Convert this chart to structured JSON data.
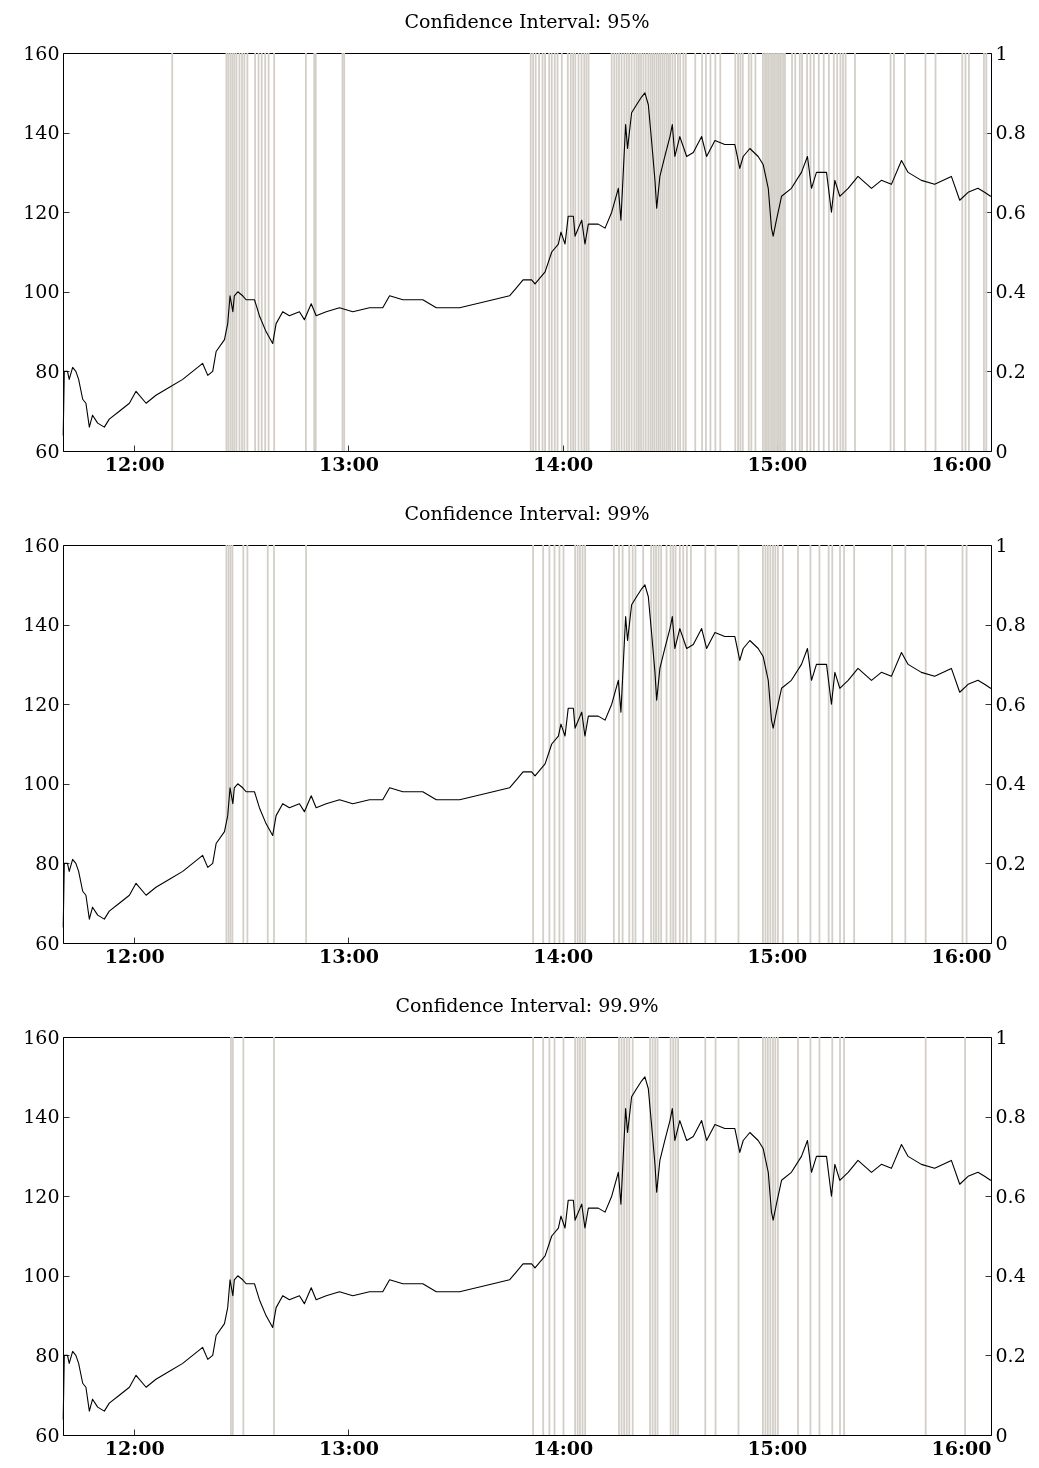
{
  "chart_data": [
    {
      "type": "line",
      "title": "Confidence Interval: 95%",
      "xlim": [
        11.667,
        16
      ],
      "xticks": [
        {
          "value": 12,
          "label": "12:00"
        },
        {
          "value": 13,
          "label": "13:00"
        },
        {
          "value": 14,
          "label": "14:00"
        },
        {
          "value": 15,
          "label": "15:00"
        },
        {
          "value": 16,
          "label": "16:00"
        }
      ],
      "ylim": [
        60,
        160
      ],
      "yticks": [
        60,
        80,
        100,
        120,
        140,
        160
      ],
      "y2lim": [
        0,
        1
      ],
      "y2ticks": [
        0,
        0.2,
        0.4,
        0.6,
        0.8,
        1
      ],
      "series": [
        {
          "type": "bar",
          "axis": "y2",
          "color": "#d3cfc8",
          "x": [
            12.177,
            12.43,
            12.439,
            12.449,
            12.458,
            12.467,
            12.477,
            12.491,
            12.503,
            12.514,
            12.528,
            12.564,
            12.58,
            12.595,
            12.611,
            12.627,
            12.653,
            12.801,
            12.84,
            12.847,
            12.972,
            12.98,
            13.851,
            13.862,
            13.874,
            13.89,
            13.906,
            13.918,
            13.937,
            13.949,
            13.963,
            13.976,
            13.996,
            14.024,
            14.038,
            14.049,
            14.059,
            14.074,
            14.088,
            14.101,
            14.111,
            14.121,
            14.229,
            14.241,
            14.252,
            14.263,
            14.275,
            14.288,
            14.299,
            14.31,
            14.322,
            14.335,
            14.346,
            14.356,
            14.366,
            14.377,
            14.388,
            14.4,
            14.41,
            14.419,
            14.428,
            14.438,
            14.447,
            14.456,
            14.466,
            14.475,
            14.485,
            14.494,
            14.502,
            14.513,
            14.525,
            14.538,
            14.549,
            14.564,
            14.575,
            14.619,
            14.651,
            14.669,
            14.69,
            14.713,
            14.736,
            14.806,
            14.819,
            14.83,
            14.841,
            14.869,
            14.881,
            14.9,
            14.935,
            14.945,
            14.954,
            14.963,
            14.973,
            14.982,
            14.991,
            15.001,
            15.01,
            15.019,
            15.029,
            15.038,
            15.071,
            15.086,
            15.107,
            15.118,
            15.141,
            15.157,
            15.173,
            15.196,
            15.219,
            15.243,
            15.266,
            15.282,
            15.297,
            15.309,
            15.321,
            15.365,
            15.531,
            15.547,
            15.598,
            15.694,
            15.741,
            15.866,
            15.881,
            15.897,
            15.967,
            15.978
          ],
          "values": [
            1,
            1,
            1,
            1,
            1,
            1,
            1,
            1,
            1,
            1,
            1,
            1,
            1,
            1,
            1,
            1,
            1,
            1,
            1,
            1,
            1,
            1,
            1,
            1,
            1,
            1,
            1,
            1,
            1,
            1,
            1,
            1,
            1,
            1,
            1,
            1,
            1,
            1,
            1,
            1,
            1,
            1,
            1,
            1,
            1,
            1,
            1,
            1,
            1,
            1,
            1,
            1,
            1,
            1,
            1,
            1,
            1,
            1,
            1,
            1,
            1,
            1,
            1,
            1,
            1,
            1,
            1,
            1,
            1,
            1,
            1,
            1,
            1,
            1,
            1,
            1,
            1,
            1,
            1,
            1,
            1,
            1,
            1,
            1,
            1,
            1,
            1,
            1,
            1,
            1,
            1,
            1,
            1,
            1,
            1,
            1,
            1,
            1,
            1,
            1,
            1,
            1,
            1,
            1,
            1,
            1,
            1,
            1,
            1,
            1,
            1,
            1,
            1,
            1,
            1,
            1,
            1,
            1,
            1,
            1,
            1,
            1,
            1,
            1,
            1,
            1
          ]
        },
        {
          "color": "#000000",
          "x": [
            11.668,
            11.673,
            11.688,
            11.696,
            11.712,
            11.727,
            11.74,
            11.759,
            11.774,
            11.79,
            11.805,
            11.829,
            11.86,
            11.883,
            11.93,
            11.977,
            12.008,
            12.055,
            12.101,
            12.164,
            12.226,
            12.319,
            12.343,
            12.366,
            12.382,
            12.421,
            12.436,
            12.447,
            12.46,
            12.467,
            12.483,
            12.506,
            12.522,
            12.537,
            12.561,
            12.584,
            12.615,
            12.646,
            12.662,
            12.693,
            12.724,
            12.771,
            12.794,
            12.826,
            12.849,
            12.896,
            12.958,
            13.02,
            13.098,
            13.16,
            13.192,
            13.254,
            13.347,
            13.41,
            13.519,
            13.597,
            13.675,
            13.752,
            13.784,
            13.815,
            13.855,
            13.871,
            13.918,
            13.949,
            13.98,
            13.992,
            14.011,
            14.026,
            14.05,
            14.058,
            14.089,
            14.104,
            14.12,
            14.166,
            14.198,
            14.229,
            14.26,
            14.272,
            14.283,
            14.294,
            14.303,
            14.322,
            14.345,
            14.369,
            14.384,
            14.4,
            14.415,
            14.431,
            14.439,
            14.454,
            14.477,
            14.501,
            14.512,
            14.524,
            14.547,
            14.579,
            14.61,
            14.649,
            14.672,
            14.711,
            14.757,
            14.804,
            14.827,
            14.843,
            14.874,
            14.913,
            14.936,
            14.96,
            14.975,
            14.983,
            14.998,
            15.022,
            15.068,
            15.115,
            15.143,
            15.162,
            15.185,
            15.232,
            15.255,
            15.271,
            15.294,
            15.333,
            15.379,
            15.442,
            15.488,
            15.535,
            15.582,
            15.613,
            15.675,
            15.737,
            15.815,
            15.854,
            15.893,
            15.939,
            15.97,
            15.998
          ],
          "values": [
            64,
            80,
            80,
            78,
            81,
            80,
            78,
            73,
            72,
            66,
            69,
            67,
            66,
            68,
            70,
            72,
            75,
            72,
            74,
            76,
            78,
            82,
            79,
            80,
            85,
            88,
            92,
            99,
            95,
            99,
            100,
            99,
            98,
            98,
            98,
            94,
            90,
            87,
            92,
            95,
            94,
            95,
            93,
            97,
            94,
            95,
            96,
            95,
            96,
            96,
            99,
            98,
            98,
            96,
            96,
            97,
            98,
            99,
            101,
            103,
            103,
            102,
            105,
            110,
            112,
            115,
            112,
            119,
            119,
            114,
            118,
            112,
            117,
            117,
            116,
            120,
            126,
            118,
            130,
            142,
            136,
            145,
            147,
            149,
            150,
            147,
            138,
            128,
            121,
            129,
            134,
            139,
            142,
            134,
            139,
            134,
            135,
            139,
            134,
            138,
            137,
            137,
            131,
            134,
            136,
            134,
            132,
            126,
            116,
            114,
            118,
            124,
            126,
            130,
            134,
            126,
            130,
            130,
            120,
            128,
            124,
            126,
            129,
            126,
            128,
            127,
            133,
            130,
            128,
            127,
            129,
            123,
            125,
            126,
            125,
            124
          ]
        }
      ]
    },
    {
      "type": "line",
      "title": "Confidence Interval: 99%",
      "xlim": [
        11.667,
        16
      ],
      "xticks": [
        {
          "value": 12,
          "label": "12:00"
        },
        {
          "value": 13,
          "label": "13:00"
        },
        {
          "value": 14,
          "label": "14:00"
        },
        {
          "value": 15,
          "label": "15:00"
        },
        {
          "value": 16,
          "label": "16:00"
        }
      ],
      "ylim": [
        60,
        160
      ],
      "yticks": [
        60,
        80,
        100,
        120,
        140,
        160
      ],
      "y2lim": [
        0,
        1
      ],
      "y2ticks": [
        0,
        0.2,
        0.4,
        0.6,
        0.8,
        1
      ],
      "series": [
        {
          "type": "bar",
          "axis": "y2",
          "color": "#d3cfc8",
          "x": [
            12.43,
            12.44,
            12.449,
            12.458,
            12.509,
            12.528,
            12.623,
            12.652,
            12.802,
            13.862,
            13.909,
            13.938,
            13.962,
            13.985,
            14.004,
            14.058,
            14.07,
            14.081,
            14.093,
            14.105,
            14.239,
            14.263,
            14.28,
            14.311,
            14.327,
            14.34,
            14.376,
            14.413,
            14.425,
            14.436,
            14.448,
            14.46,
            14.485,
            14.504,
            14.516,
            14.527,
            14.547,
            14.563,
            14.58,
            14.599,
            14.666,
            14.714,
            14.821,
            14.935,
            14.947,
            14.958,
            14.97,
            14.982,
            14.993,
            15.005,
            15.028,
            15.099,
            15.157,
            15.199,
            15.242,
            15.259,
            15.295,
            15.314,
            15.361,
            15.538,
            15.6,
            15.695,
            15.867,
            15.886
          ],
          "values": [
            1,
            1,
            1,
            1,
            1,
            1,
            1,
            1,
            1,
            1,
            1,
            1,
            1,
            1,
            1,
            1,
            1,
            1,
            1,
            1,
            1,
            1,
            1,
            1,
            1,
            1,
            1,
            1,
            1,
            1,
            1,
            1,
            1,
            1,
            1,
            1,
            1,
            1,
            1,
            1,
            1,
            1,
            1,
            1,
            1,
            1,
            1,
            1,
            1,
            1,
            1,
            1,
            1,
            1,
            1,
            1,
            1,
            1,
            1,
            1,
            1,
            1,
            1,
            1
          ]
        },
        {
          "color": "#000000",
          "x": [
            11.668,
            11.673,
            11.688,
            11.696,
            11.712,
            11.727,
            11.74,
            11.759,
            11.774,
            11.79,
            11.805,
            11.829,
            11.86,
            11.883,
            11.93,
            11.977,
            12.008,
            12.055,
            12.101,
            12.164,
            12.226,
            12.319,
            12.343,
            12.366,
            12.382,
            12.421,
            12.436,
            12.447,
            12.46,
            12.467,
            12.483,
            12.506,
            12.522,
            12.537,
            12.561,
            12.584,
            12.615,
            12.646,
            12.662,
            12.693,
            12.724,
            12.771,
            12.794,
            12.826,
            12.849,
            12.896,
            12.958,
            13.02,
            13.098,
            13.16,
            13.192,
            13.254,
            13.347,
            13.41,
            13.519,
            13.597,
            13.675,
            13.752,
            13.784,
            13.815,
            13.855,
            13.871,
            13.918,
            13.949,
            13.98,
            13.992,
            14.011,
            14.026,
            14.05,
            14.058,
            14.089,
            14.104,
            14.12,
            14.166,
            14.198,
            14.229,
            14.26,
            14.272,
            14.283,
            14.294,
            14.303,
            14.322,
            14.345,
            14.369,
            14.384,
            14.4,
            14.415,
            14.431,
            14.439,
            14.454,
            14.477,
            14.501,
            14.512,
            14.524,
            14.547,
            14.579,
            14.61,
            14.649,
            14.672,
            14.711,
            14.757,
            14.804,
            14.827,
            14.843,
            14.874,
            14.913,
            14.936,
            14.96,
            14.975,
            14.983,
            14.998,
            15.022,
            15.068,
            15.115,
            15.143,
            15.162,
            15.185,
            15.232,
            15.255,
            15.271,
            15.294,
            15.333,
            15.379,
            15.442,
            15.488,
            15.535,
            15.582,
            15.613,
            15.675,
            15.737,
            15.815,
            15.854,
            15.893,
            15.939,
            15.97,
            15.998
          ],
          "values": [
            64,
            80,
            80,
            78,
            81,
            80,
            78,
            73,
            72,
            66,
            69,
            67,
            66,
            68,
            70,
            72,
            75,
            72,
            74,
            76,
            78,
            82,
            79,
            80,
            85,
            88,
            92,
            99,
            95,
            99,
            100,
            99,
            98,
            98,
            98,
            94,
            90,
            87,
            92,
            95,
            94,
            95,
            93,
            97,
            94,
            95,
            96,
            95,
            96,
            96,
            99,
            98,
            98,
            96,
            96,
            97,
            98,
            99,
            101,
            103,
            103,
            102,
            105,
            110,
            112,
            115,
            112,
            119,
            119,
            114,
            118,
            112,
            117,
            117,
            116,
            120,
            126,
            118,
            130,
            142,
            136,
            145,
            147,
            149,
            150,
            147,
            138,
            128,
            121,
            129,
            134,
            139,
            142,
            134,
            139,
            134,
            135,
            139,
            134,
            138,
            137,
            137,
            131,
            134,
            136,
            134,
            132,
            126,
            116,
            114,
            118,
            124,
            126,
            130,
            134,
            126,
            130,
            130,
            120,
            128,
            124,
            126,
            129,
            126,
            128,
            127,
            133,
            130,
            128,
            127,
            129,
            123,
            125,
            126,
            125,
            124
          ]
        }
      ]
    },
    {
      "type": "line",
      "title": "Confidence Interval: 99.9%",
      "xlim": [
        11.667,
        16
      ],
      "xticks": [
        {
          "value": 12,
          "label": "12:00"
        },
        {
          "value": 13,
          "label": "13:00"
        },
        {
          "value": 14,
          "label": "14:00"
        },
        {
          "value": 15,
          "label": "15:00"
        },
        {
          "value": 16,
          "label": "16:00"
        }
      ],
      "ylim": [
        60,
        160
      ],
      "yticks": [
        60,
        80,
        100,
        120,
        140,
        160
      ],
      "y2lim": [
        0,
        1
      ],
      "y2ticks": [
        0,
        0.2,
        0.4,
        0.6,
        0.8,
        1
      ],
      "series": [
        {
          "type": "bar",
          "axis": "y2",
          "color": "#d3cfc8",
          "x": [
            12.451,
            12.46,
            12.509,
            12.652,
            13.862,
            13.909,
            13.938,
            13.962,
            14.004,
            14.058,
            14.07,
            14.081,
            14.093,
            14.105,
            14.263,
            14.275,
            14.287,
            14.299,
            14.311,
            14.327,
            14.408,
            14.42,
            14.432,
            14.443,
            14.504,
            14.516,
            14.527,
            14.539,
            14.666,
            14.714,
            14.821,
            14.935,
            14.947,
            14.958,
            14.97,
            14.982,
            14.993,
            15.005,
            15.099,
            15.157,
            15.199,
            15.259,
            15.295,
            15.314,
            15.695,
            15.879
          ],
          "values": [
            1,
            1,
            1,
            1,
            1,
            1,
            1,
            1,
            1,
            1,
            1,
            1,
            1,
            1,
            1,
            1,
            1,
            1,
            1,
            1,
            1,
            1,
            1,
            1,
            1,
            1,
            1,
            1,
            1,
            1,
            1,
            1,
            1,
            1,
            1,
            1,
            1,
            1,
            1,
            1,
            1,
            1,
            1,
            1,
            1,
            1
          ]
        },
        {
          "color": "#000000",
          "x": [
            11.668,
            11.673,
            11.688,
            11.696,
            11.712,
            11.727,
            11.74,
            11.759,
            11.774,
            11.79,
            11.805,
            11.829,
            11.86,
            11.883,
            11.93,
            11.977,
            12.008,
            12.055,
            12.101,
            12.164,
            12.226,
            12.319,
            12.343,
            12.366,
            12.382,
            12.421,
            12.436,
            12.447,
            12.46,
            12.467,
            12.483,
            12.506,
            12.522,
            12.537,
            12.561,
            12.584,
            12.615,
            12.646,
            12.662,
            12.693,
            12.724,
            12.771,
            12.794,
            12.826,
            12.849,
            12.896,
            12.958,
            13.02,
            13.098,
            13.16,
            13.192,
            13.254,
            13.347,
            13.41,
            13.519,
            13.597,
            13.675,
            13.752,
            13.784,
            13.815,
            13.855,
            13.871,
            13.918,
            13.949,
            13.98,
            13.992,
            14.011,
            14.026,
            14.05,
            14.058,
            14.089,
            14.104,
            14.12,
            14.166,
            14.198,
            14.229,
            14.26,
            14.272,
            14.283,
            14.294,
            14.303,
            14.322,
            14.345,
            14.369,
            14.384,
            14.4,
            14.415,
            14.431,
            14.439,
            14.454,
            14.477,
            14.501,
            14.512,
            14.524,
            14.547,
            14.579,
            14.61,
            14.649,
            14.672,
            14.711,
            14.757,
            14.804,
            14.827,
            14.843,
            14.874,
            14.913,
            14.936,
            14.96,
            14.975,
            14.983,
            14.998,
            15.022,
            15.068,
            15.115,
            15.143,
            15.162,
            15.185,
            15.232,
            15.255,
            15.271,
            15.294,
            15.333,
            15.379,
            15.442,
            15.488,
            15.535,
            15.582,
            15.613,
            15.675,
            15.737,
            15.815,
            15.854,
            15.893,
            15.939,
            15.97,
            15.998
          ],
          "values": [
            64,
            80,
            80,
            78,
            81,
            80,
            78,
            73,
            72,
            66,
            69,
            67,
            66,
            68,
            70,
            72,
            75,
            72,
            74,
            76,
            78,
            82,
            79,
            80,
            85,
            88,
            92,
            99,
            95,
            99,
            100,
            99,
            98,
            98,
            98,
            94,
            90,
            87,
            92,
            95,
            94,
            95,
            93,
            97,
            94,
            95,
            96,
            95,
            96,
            96,
            99,
            98,
            98,
            96,
            96,
            97,
            98,
            99,
            101,
            103,
            103,
            102,
            105,
            110,
            112,
            115,
            112,
            119,
            119,
            114,
            118,
            112,
            117,
            117,
            116,
            120,
            126,
            118,
            130,
            142,
            136,
            145,
            147,
            149,
            150,
            147,
            138,
            128,
            121,
            129,
            134,
            139,
            142,
            134,
            139,
            134,
            135,
            139,
            134,
            138,
            137,
            137,
            131,
            134,
            136,
            134,
            132,
            126,
            116,
            114,
            118,
            124,
            126,
            130,
            134,
            126,
            130,
            130,
            120,
            128,
            124,
            126,
            129,
            126,
            128,
            127,
            133,
            130,
            128,
            127,
            129,
            123,
            125,
            126,
            125,
            124
          ]
        }
      ]
    }
  ]
}
